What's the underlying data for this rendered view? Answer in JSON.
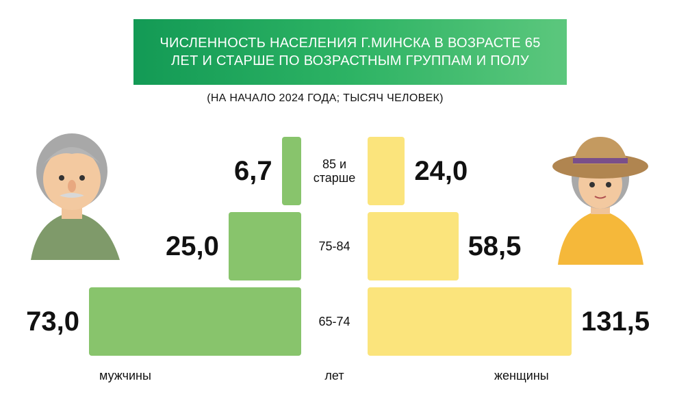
{
  "chart_data": {
    "type": "pyramid",
    "title": "ЧИСЛЕННОСТЬ НАСЕЛЕНИЯ Г.МИНСКА  В ВОЗРАСТЕ 65 ЛЕТ И СТАРШЕ ПО ВОЗРАСТНЫМ ГРУППАМ И ПОЛУ",
    "subtitle": "(НА НАЧАЛО 2024 ГОДА; ТЫСЯЧ ЧЕЛОВЕК)",
    "categories": [
      "85 и старше",
      "75-84",
      "65-74"
    ],
    "category_label": "лет",
    "series": [
      {
        "name": "мужчины",
        "color": "#88c46c",
        "values": [
          6.7,
          25.0,
          73.0
        ],
        "value_labels": [
          "6,7",
          "25,0",
          "73,0"
        ]
      },
      {
        "name": "женщины",
        "color": "#fbe47c",
        "values": [
          24.0,
          58.5,
          131.5
        ],
        "value_labels": [
          "24,0",
          "58,5",
          "131,5"
        ]
      }
    ]
  }
}
